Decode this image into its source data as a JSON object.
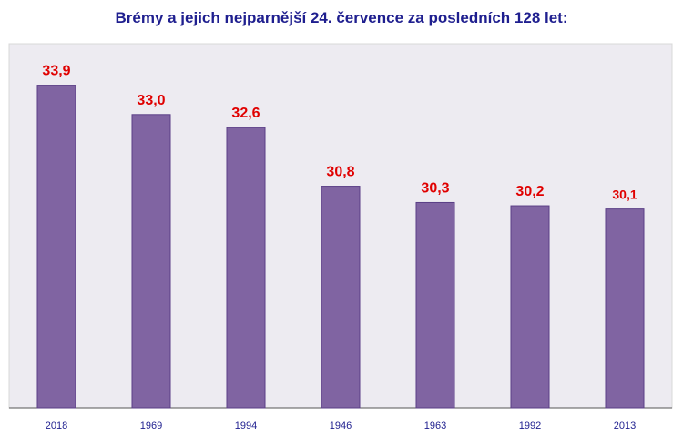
{
  "chart_data": {
    "type": "bar",
    "title": "Brémy a jejich nejparnější 24. července za posledních 128 let:",
    "categories": [
      "2018",
      "1969",
      "1994",
      "1946",
      "1963",
      "1992",
      "2013"
    ],
    "values": [
      33.9,
      33.0,
      32.6,
      30.8,
      30.3,
      30.2,
      30.1
    ],
    "value_labels": [
      "33,9",
      "33,0",
      "32,6",
      "30,8",
      "30,3",
      "30,2",
      "30,1"
    ],
    "xlabel": "",
    "ylabel": "",
    "ylim": [
      24.0,
      34.0
    ],
    "grid": false,
    "legend": "none",
    "colors": {
      "bar": "#8064A2",
      "bar_border": "#5A3E86",
      "value_label": "#E00000",
      "plot_background": "#EDEBF1",
      "title": "#1F1F8F",
      "tick_label": "#1F1F8F"
    }
  }
}
